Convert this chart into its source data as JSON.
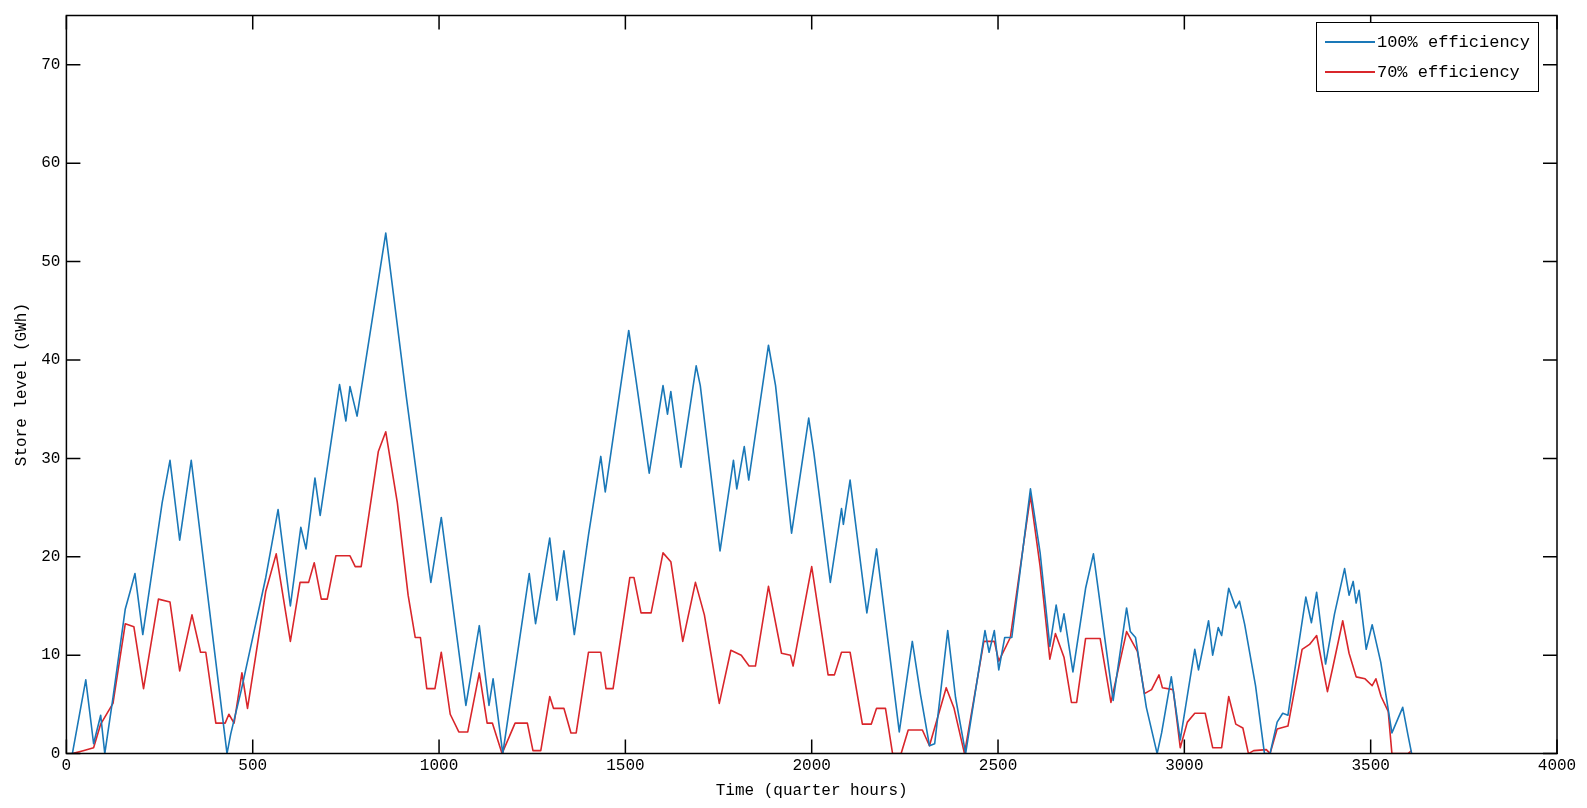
{
  "chart_data": {
    "type": "line",
    "xlabel": "Time (quarter hours)",
    "ylabel": "Store level (GWh)",
    "xlim": [
      0,
      4000
    ],
    "xticks": [
      0,
      500,
      1000,
      1500,
      2000,
      2500,
      3000,
      3500,
      4000
    ],
    "ylim": [
      0,
      75
    ],
    "yticks": [
      0,
      10,
      20,
      30,
      40,
      50,
      60,
      70
    ],
    "grid": false,
    "legend": "top right",
    "line_style": "solid",
    "marker": "none",
    "series": [
      {
        "name": "100% efficiency",
        "color": "#1a78b8",
        "x": [
          16,
          52,
          73,
          92,
          103,
          125,
          158,
          172,
          184,
          205,
          257,
          278,
          304,
          335,
          431,
          441,
          469,
          535,
          568,
          601,
          629,
          643,
          667,
          681,
          733,
          750,
          761,
          780,
          857,
          912,
          978,
          1006,
          1072,
          1108,
          1134,
          1145,
          1171,
          1242,
          1259,
          1297,
          1316,
          1335,
          1363,
          1401,
          1434,
          1446,
          1509,
          1528,
          1564,
          1601,
          1613,
          1622,
          1649,
          1690,
          1701,
          1754,
          1790,
          1799,
          1819,
          1831,
          1884,
          1903,
          1946,
          1992,
          2006,
          2050,
          2080,
          2085,
          2103,
          2148,
          2174,
          2235,
          2270,
          2292,
          2316,
          2330,
          2365,
          2386,
          2413,
          2465,
          2476,
          2490,
          2502,
          2518,
          2537,
          2587,
          2613,
          2639,
          2656,
          2668,
          2677,
          2701,
          2735,
          2756,
          2809,
          2845,
          2855,
          2869,
          2898,
          2927,
          2939,
          2965,
          2989,
          3028,
          3038,
          3065,
          3076,
          3091,
          3100,
          3119,
          3138,
          3148,
          3162,
          3191,
          3215,
          3230,
          3249,
          3264,
          3278,
          3326,
          3341,
          3355,
          3379,
          3403,
          3430,
          3442,
          3453,
          3461,
          3469,
          3488,
          3504,
          3527,
          3557,
          3586,
          3600,
          3610
        ],
        "values": [
          0,
          7.5,
          1,
          3.9,
          0,
          5.7,
          14.7,
          16.6,
          18.3,
          12.1,
          25.5,
          29.8,
          21.7,
          29.8,
          0,
          2,
          6.4,
          17.9,
          24.8,
          15,
          23,
          20.8,
          28,
          24.2,
          37.5,
          33.8,
          37.3,
          34.3,
          52.9,
          36.3,
          17.4,
          24,
          4.9,
          13,
          4.9,
          7.6,
          0,
          18.3,
          13.2,
          21.9,
          15.6,
          20.6,
          12.1,
          22.2,
          30.2,
          26.6,
          43,
          38.1,
          28.5,
          37.4,
          34.5,
          36.8,
          29.1,
          39.4,
          37.4,
          20.6,
          29.8,
          26.9,
          31.2,
          27.8,
          41.5,
          37.4,
          22.4,
          34.1,
          30.5,
          17.4,
          24.9,
          23.3,
          27.8,
          14.3,
          20.8,
          2.2,
          11.4,
          6,
          0.8,
          1,
          12.5,
          5.7,
          0,
          12.5,
          10.3,
          12.5,
          8.5,
          11.8,
          11.8,
          26.9,
          20.4,
          10.9,
          15.1,
          12.4,
          14.2,
          8.3,
          16.8,
          20.3,
          5.4,
          14.8,
          12.4,
          11.8,
          4.7,
          0,
          2.1,
          7.8,
          1.4,
          10.6,
          8.5,
          13.5,
          10,
          12.8,
          12,
          16.8,
          14.8,
          15.5,
          13.1,
          6.9,
          0,
          0,
          3.2,
          4.1,
          3.9,
          15.9,
          13.3,
          16.4,
          9.1,
          14.2,
          18.8,
          16.1,
          17.5,
          15.3,
          16.6,
          10.6,
          13.1,
          9.3,
          2.1,
          4.7,
          1.9,
          0
        ]
      },
      {
        "name": "70% efficiency",
        "color": "#d9262b",
        "x": [
          16,
          45,
          73,
          92,
          125,
          158,
          181,
          207,
          247,
          278,
          304,
          337,
          360,
          374,
          401,
          426,
          436,
          450,
          471,
          486,
          535,
          563,
          601,
          627,
          650,
          665,
          684,
          700,
          723,
          761,
          775,
          791,
          837,
          857,
          888,
          917,
          936,
          950,
          967,
          989,
          1006,
          1030,
          1053,
          1077,
          1108,
          1129,
          1143,
          1169,
          1204,
          1237,
          1252,
          1273,
          1297,
          1307,
          1335,
          1354,
          1368,
          1401,
          1434,
          1448,
          1467,
          1512,
          1523,
          1542,
          1569,
          1601,
          1622,
          1654,
          1688,
          1712,
          1752,
          1783,
          1811,
          1832,
          1849,
          1884,
          1919,
          1943,
          1950,
          2000,
          2044,
          2061,
          2080,
          2103,
          2136,
          2160,
          2174,
          2198,
          2217,
          2240,
          2259,
          2297,
          2316,
          2361,
          2382,
          2410,
          2462,
          2490,
          2502,
          2533,
          2587,
          2613,
          2639,
          2654,
          2677,
          2697,
          2711,
          2735,
          2774,
          2803,
          2845,
          2874,
          2893,
          2912,
          2932,
          2941,
          2970,
          2989,
          3008,
          3028,
          3056,
          3076,
          3100,
          3119,
          3138,
          3157,
          3172,
          3186,
          3220,
          3230,
          3249,
          3278,
          3316,
          3336,
          3355,
          3384,
          3398,
          3425,
          3442,
          3461,
          3485,
          3504,
          3514,
          3528,
          3547,
          3557,
          3600,
          3610
        ],
        "values": [
          0,
          0.3,
          0.6,
          3,
          5.1,
          13.2,
          12.9,
          6.6,
          15.7,
          15.4,
          8.4,
          14.1,
          10.3,
          10.3,
          3.1,
          3.1,
          4,
          3.1,
          8.2,
          4.6,
          16.5,
          20.3,
          11.4,
          17.4,
          17.4,
          19.4,
          15.7,
          15.7,
          20.1,
          20.1,
          19,
          19,
          30.7,
          32.7,
          25.5,
          16.1,
          11.8,
          11.8,
          6.6,
          6.6,
          10.3,
          4,
          2.2,
          2.2,
          8.2,
          3.1,
          3.1,
          0,
          3.1,
          3.1,
          0.3,
          0.3,
          5.8,
          4.6,
          4.6,
          2.1,
          2.1,
          10.3,
          10.3,
          6.6,
          6.6,
          17.9,
          17.9,
          14.3,
          14.3,
          20.4,
          19.5,
          11.4,
          17.4,
          14.1,
          5.1,
          10.5,
          10,
          8.9,
          8.9,
          17,
          10.2,
          10,
          8.9,
          19,
          8,
          8,
          10.3,
          10.3,
          3,
          3,
          4.6,
          4.6,
          0,
          0,
          2.4,
          2.4,
          0.8,
          6.7,
          4.6,
          0,
          11.4,
          11.4,
          9.4,
          11.8,
          26.2,
          19,
          9.6,
          12.2,
          9.8,
          5.2,
          5.2,
          11.7,
          11.7,
          5.2,
          12.4,
          10.4,
          6.1,
          6.5,
          8,
          6.7,
          6.5,
          0.6,
          3.2,
          4.1,
          4.1,
          0.6,
          0.6,
          5.8,
          3,
          2.6,
          0,
          0.3,
          0.4,
          0,
          2.5,
          2.8,
          10.6,
          11.1,
          12,
          6.3,
          8.7,
          13.5,
          10.2,
          7.8,
          7.6,
          6.9,
          7.6,
          5.8,
          4.3,
          0,
          0,
          0.3
        ]
      }
    ]
  }
}
